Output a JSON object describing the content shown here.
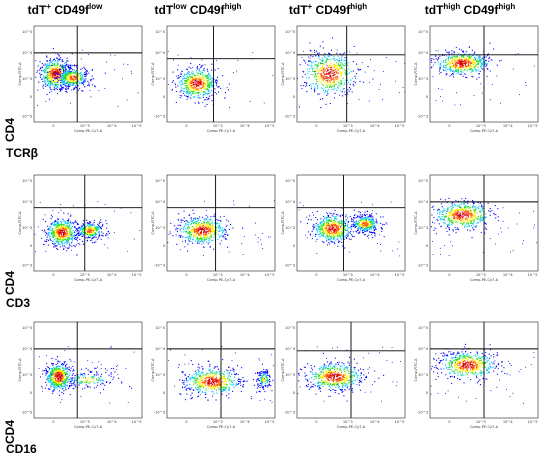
{
  "columns": [
    {
      "main": "tdT",
      "main_sup": "+",
      "marker": " CD49f",
      "marker_sup": "low"
    },
    {
      "main": "tdT",
      "main_sup": "low",
      "marker": " CD49f",
      "marker_sup": "high"
    },
    {
      "main": "tdT",
      "main_sup": "+",
      "marker": " CD49f",
      "marker_sup": "high"
    },
    {
      "main": "tdT",
      "main_sup": "high",
      "marker": " CD49f",
      "marker_sup": "high"
    }
  ],
  "rows": [
    {
      "y_marker": "CD4",
      "x_marker": "TCRβ"
    },
    {
      "y_marker": "CD4",
      "x_marker": "CD3"
    },
    {
      "y_marker": "CD4",
      "x_marker": "CD16"
    }
  ],
  "axes": {
    "x_param": "Comp-PE-Cy7-A",
    "y_param": "Comp-FITC-A",
    "x_ticks": [
      "0",
      "10^3",
      "10^4",
      "10^5"
    ],
    "y_ticks": [
      "-10^3",
      "0",
      "10^3",
      "10^4",
      "10^5"
    ]
  },
  "colors": {
    "low": "#0000ff",
    "mid1": "#00c8ff",
    "mid2": "#22dd22",
    "mid3": "#ffee00",
    "high": "#ff5500",
    "top": "#dd0000"
  },
  "chart_data": [
    {
      "type": "scatter",
      "panel": "row1-col1",
      "xlabel": "Comp-PE-Cy7-A",
      "ylabel": "Comp-FITC-A",
      "clusters": [
        {
          "cx": 0.2,
          "cy": 0.5,
          "sx": 0.07,
          "sy": 0.08,
          "w": 1.0
        },
        {
          "cx": 0.36,
          "cy": 0.46,
          "sx": 0.08,
          "sy": 0.06,
          "w": 0.75
        }
      ],
      "gate": {
        "x": 0.4,
        "y": 0.72
      }
    },
    {
      "type": "scatter",
      "panel": "row1-col2",
      "xlabel": "Comp-PE-Cy7-A",
      "ylabel": "Comp-FITC-A",
      "clusters": [
        {
          "cx": 0.28,
          "cy": 0.4,
          "sx": 0.09,
          "sy": 0.08,
          "w": 1.0
        }
      ],
      "gate": {
        "x": 0.43,
        "y": 0.66
      }
    },
    {
      "type": "scatter",
      "panel": "row1-col3",
      "xlabel": "Comp-PE-Cy7-A",
      "ylabel": "Comp-FITC-A",
      "clusters": [
        {
          "cx": 0.3,
          "cy": 0.5,
          "sx": 0.12,
          "sy": 0.11,
          "w": 1.0
        }
      ],
      "gate": {
        "x": 0.46,
        "y": 0.7
      }
    },
    {
      "type": "scatter",
      "panel": "row1-col4",
      "xlabel": "Comp-PE-Cy7-A",
      "ylabel": "Comp-FITC-A",
      "clusters": [
        {
          "cx": 0.3,
          "cy": 0.61,
          "sx": 0.12,
          "sy": 0.06,
          "w": 1.0
        }
      ],
      "gate": {
        "x": 0.5,
        "y": 0.7
      }
    },
    {
      "type": "scatter",
      "panel": "row2-col1",
      "xlabel": "Comp-PE-Cy7-A",
      "ylabel": "Comp-FITC-A",
      "clusters": [
        {
          "cx": 0.26,
          "cy": 0.4,
          "sx": 0.07,
          "sy": 0.07,
          "w": 1.0
        },
        {
          "cx": 0.52,
          "cy": 0.42,
          "sx": 0.07,
          "sy": 0.05,
          "w": 0.55
        }
      ],
      "gate": {
        "x": 0.47,
        "y": 0.66
      }
    },
    {
      "type": "scatter",
      "panel": "row2-col2",
      "xlabel": "Comp-PE-Cy7-A",
      "ylabel": "Comp-FITC-A",
      "clusters": [
        {
          "cx": 0.33,
          "cy": 0.42,
          "sx": 0.11,
          "sy": 0.07,
          "w": 1.0
        }
      ],
      "gate": {
        "x": 0.45,
        "y": 0.66
      }
    },
    {
      "type": "scatter",
      "panel": "row2-col3",
      "xlabel": "Comp-PE-Cy7-A",
      "ylabel": "Comp-FITC-A",
      "clusters": [
        {
          "cx": 0.33,
          "cy": 0.44,
          "sx": 0.09,
          "sy": 0.07,
          "w": 1.0
        },
        {
          "cx": 0.63,
          "cy": 0.49,
          "sx": 0.07,
          "sy": 0.05,
          "w": 0.6
        }
      ],
      "gate": {
        "x": 0.43,
        "y": 0.66
      }
    },
    {
      "type": "scatter",
      "panel": "row2-col4",
      "xlabel": "Comp-PE-Cy7-A",
      "ylabel": "Comp-FITC-A",
      "clusters": [
        {
          "cx": 0.3,
          "cy": 0.58,
          "sx": 0.13,
          "sy": 0.07,
          "w": 1.0
        }
      ],
      "gate": {
        "x": 0.5,
        "y": 0.72
      }
    },
    {
      "type": "scatter",
      "panel": "row3-col1",
      "xlabel": "Comp-PE-Cy7-A",
      "ylabel": "Comp-FITC-A",
      "clusters": [
        {
          "cx": 0.23,
          "cy": 0.43,
          "sx": 0.06,
          "sy": 0.07,
          "w": 1.0
        },
        {
          "cx": 0.5,
          "cy": 0.4,
          "sx": 0.15,
          "sy": 0.05,
          "w": 0.3
        }
      ],
      "gate": {
        "x": 0.4,
        "y": 0.72
      }
    },
    {
      "type": "scatter",
      "panel": "row3-col2",
      "xlabel": "Comp-PE-Cy7-A",
      "ylabel": "Comp-FITC-A",
      "clusters": [
        {
          "cx": 0.42,
          "cy": 0.38,
          "sx": 0.13,
          "sy": 0.07,
          "w": 1.0
        },
        {
          "cx": 0.9,
          "cy": 0.4,
          "sx": 0.04,
          "sy": 0.06,
          "w": 0.25
        }
      ],
      "gate": {
        "x": 0.5,
        "y": 0.72
      }
    },
    {
      "type": "scatter",
      "panel": "row3-col3",
      "xlabel": "Comp-PE-Cy7-A",
      "ylabel": "Comp-FITC-A",
      "clusters": [
        {
          "cx": 0.35,
          "cy": 0.43,
          "sx": 0.13,
          "sy": 0.07,
          "w": 1.0
        }
      ],
      "gate": {
        "x": 0.5,
        "y": 0.7
      }
    },
    {
      "type": "scatter",
      "panel": "row3-col4",
      "xlabel": "Comp-PE-Cy7-A",
      "ylabel": "Comp-FITC-A",
      "clusters": [
        {
          "cx": 0.35,
          "cy": 0.55,
          "sx": 0.13,
          "sy": 0.07,
          "w": 1.0
        }
      ],
      "gate": {
        "x": 0.5,
        "y": 0.72
      }
    }
  ]
}
